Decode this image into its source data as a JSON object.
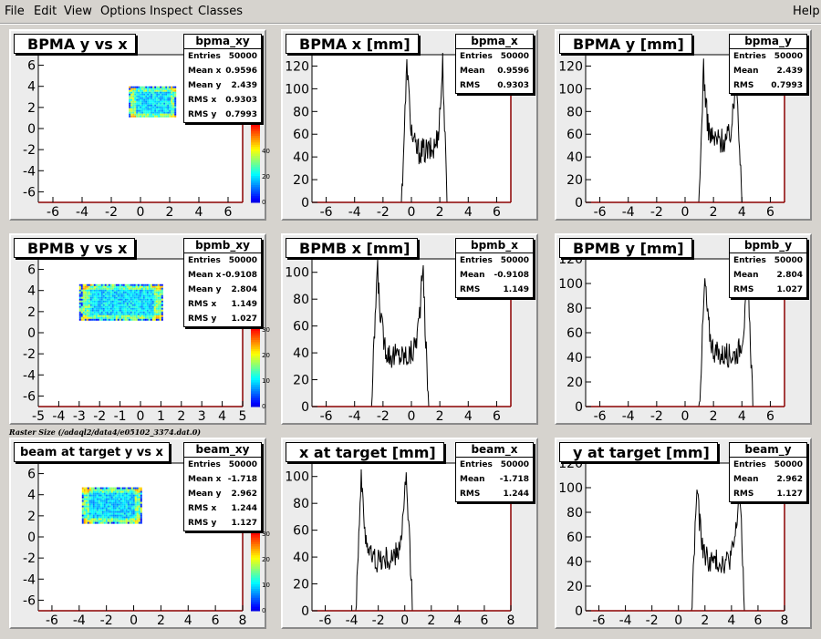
{
  "menu": {
    "file": "File",
    "edit": "Edit",
    "view": "View",
    "options": "Options",
    "inspect": "Inspect",
    "classes": "Classes",
    "help": "Help"
  },
  "caption": "Raster Size (/adaql2/data4/e05102_3374.dat.0)",
  "colors": {
    "pad_bg": "#ececec",
    "frame": "#8b0000",
    "line": "#000000"
  },
  "chart_data": [
    {
      "id": "bpma_xy",
      "type": "heatmap",
      "title": "BPMA y vs x",
      "xlim": [
        -7,
        7
      ],
      "ylim": [
        -7,
        7
      ],
      "xticks": [
        -6,
        -4,
        -2,
        0,
        2,
        4,
        6
      ],
      "yticks": [
        -6,
        -4,
        -2,
        0,
        2,
        4,
        6
      ],
      "region": {
        "x": [
          -0.8,
          2.4
        ],
        "y": [
          1.1,
          4.0
        ]
      },
      "colorbar_labels": [
        "0",
        "20",
        "40"
      ],
      "stats": {
        "name": "bpma_xy",
        "rows": [
          [
            "Entries",
            "50000"
          ],
          [
            "Mean x",
            "0.9596"
          ],
          [
            "Mean y",
            "2.439"
          ],
          [
            "RMS x",
            "0.9303"
          ],
          [
            "RMS y",
            "0.7993"
          ]
        ]
      }
    },
    {
      "id": "bpma_x",
      "type": "line",
      "title": "BPMA x [mm]",
      "xlim": [
        -7,
        7
      ],
      "ylim": [
        0,
        130
      ],
      "xticks": [
        -6,
        -4,
        -2,
        0,
        2,
        4,
        6
      ],
      "yticks": [
        0,
        20,
        40,
        60,
        80,
        100,
        120
      ],
      "shape": {
        "left": -0.7,
        "right": 2.5,
        "edge_left": -0.3,
        "edge_right": 2.2,
        "peak": 125,
        "valley": 45,
        "noise": 12
      },
      "stats": {
        "name": "bpma_x",
        "rows": [
          [
            "Entries",
            "50000"
          ],
          [
            "Mean",
            "0.9596"
          ],
          [
            "RMS",
            "0.9303"
          ]
        ]
      }
    },
    {
      "id": "bpma_y",
      "type": "line",
      "title": "BPMA y [mm]",
      "xlim": [
        -7,
        7
      ],
      "ylim": [
        0,
        130
      ],
      "xticks": [
        -6,
        -4,
        -2,
        0,
        2,
        4,
        6
      ],
      "yticks": [
        0,
        20,
        40,
        60,
        80,
        100,
        120
      ],
      "shape": {
        "left": 1.0,
        "right": 4.0,
        "edge_left": 1.3,
        "edge_right": 3.6,
        "peak": 122,
        "valley": 55,
        "noise": 12
      },
      "stats": {
        "name": "bpma_y",
        "rows": [
          [
            "Entries",
            "50000"
          ],
          [
            "Mean",
            "2.439"
          ],
          [
            "RMS",
            "0.7993"
          ]
        ]
      }
    },
    {
      "id": "bpmb_xy",
      "type": "heatmap",
      "title": "BPMB y vs x",
      "xlim": [
        -5,
        5
      ],
      "ylim": [
        -7,
        7
      ],
      "xticks": [
        -5,
        -4,
        -3,
        -2,
        -1,
        0,
        1,
        2,
        3,
        4,
        5
      ],
      "yticks": [
        -6,
        -4,
        -2,
        0,
        2,
        4,
        6
      ],
      "region": {
        "x": [
          -3.0,
          1.1
        ],
        "y": [
          1.3,
          4.6
        ]
      },
      "colorbar_labels": [
        "0",
        "10",
        "20",
        "30"
      ],
      "stats": {
        "name": "bpmb_xy",
        "rows": [
          [
            "Entries",
            "50000"
          ],
          [
            "Mean x",
            "-0.9108"
          ],
          [
            "Mean y",
            "2.804"
          ],
          [
            "RMS x",
            "1.149"
          ],
          [
            "RMS y",
            "1.027"
          ]
        ]
      }
    },
    {
      "id": "bpmb_x",
      "type": "line",
      "title": "BPMB x [mm]",
      "xlim": [
        -7,
        7
      ],
      "ylim": [
        0,
        110
      ],
      "xticks": [
        -6,
        -4,
        -2,
        0,
        2,
        4,
        6
      ],
      "yticks": [
        0,
        20,
        40,
        60,
        80,
        100
      ],
      "shape": {
        "left": -2.8,
        "right": 1.2,
        "edge_left": -2.4,
        "edge_right": 0.8,
        "peak": 105,
        "valley": 38,
        "noise": 10
      },
      "stats": {
        "name": "bpmb_x",
        "rows": [
          [
            "Entries",
            "50000"
          ],
          [
            "Mean",
            "-0.9108"
          ],
          [
            "RMS",
            "1.149"
          ]
        ]
      }
    },
    {
      "id": "bpmb_y",
      "type": "line",
      "title": "BPMB y [mm]",
      "xlim": [
        -7,
        7
      ],
      "ylim": [
        0,
        120
      ],
      "xticks": [
        -6,
        -4,
        -2,
        0,
        2,
        4,
        6
      ],
      "yticks": [
        0,
        20,
        40,
        60,
        80,
        100,
        120
      ],
      "shape": {
        "left": 1.0,
        "right": 4.8,
        "edge_left": 1.4,
        "edge_right": 4.4,
        "peak": 104,
        "valley": 42,
        "noise": 10
      },
      "stats": {
        "name": "bpmb_y",
        "rows": [
          [
            "Entries",
            "50000"
          ],
          [
            "Mean",
            "2.804"
          ],
          [
            "RMS",
            "1.027"
          ]
        ]
      }
    },
    {
      "id": "beam_xy",
      "type": "heatmap",
      "title": "beam at target y vs x",
      "xlim": [
        -7,
        8
      ],
      "ylim": [
        -7,
        7
      ],
      "xticks": [
        -6,
        -4,
        -2,
        0,
        2,
        4,
        6,
        8
      ],
      "yticks": [
        -6,
        -4,
        -2,
        0,
        2,
        4,
        6
      ],
      "region": {
        "x": [
          -3.8,
          0.6
        ],
        "y": [
          1.4,
          4.7
        ]
      },
      "colorbar_labels": [
        "0",
        "10",
        "20",
        "30"
      ],
      "stats": {
        "name": "beam_xy",
        "rows": [
          [
            "Entries",
            "50000"
          ],
          [
            "Mean x",
            "-1.718"
          ],
          [
            "Mean y",
            "2.962"
          ],
          [
            "RMS x",
            "1.244"
          ],
          [
            "RMS y",
            "1.127"
          ]
        ]
      }
    },
    {
      "id": "beam_x",
      "type": "line",
      "title": "x at target [mm]",
      "xlim": [
        -7,
        8
      ],
      "ylim": [
        0,
        110
      ],
      "xticks": [
        -6,
        -4,
        -2,
        0,
        2,
        4,
        6,
        8
      ],
      "yticks": [
        0,
        20,
        40,
        60,
        80,
        100
      ],
      "shape": {
        "left": -3.7,
        "right": 0.6,
        "edge_left": -3.3,
        "edge_right": 0.1,
        "peak": 100,
        "valley": 38,
        "noise": 10
      },
      "stats": {
        "name": "beam_x",
        "rows": [
          [
            "Entries",
            "50000"
          ],
          [
            "Mean",
            "-1.718"
          ],
          [
            "RMS",
            "1.244"
          ]
        ]
      }
    },
    {
      "id": "beam_y",
      "type": "line",
      "title": "y at target [mm]",
      "xlim": [
        -7,
        8
      ],
      "ylim": [
        0,
        120
      ],
      "xticks": [
        -6,
        -4,
        -2,
        0,
        2,
        4,
        6,
        8
      ],
      "yticks": [
        0,
        20,
        40,
        60,
        80,
        100,
        120
      ],
      "shape": {
        "left": 1.0,
        "right": 5.0,
        "edge_left": 1.4,
        "edge_right": 4.6,
        "peak": 102,
        "valley": 40,
        "noise": 10
      },
      "stats": {
        "name": "beam_y",
        "rows": [
          [
            "Entries",
            "50000"
          ],
          [
            "Mean",
            "2.962"
          ],
          [
            "RMS",
            "1.127"
          ]
        ]
      }
    }
  ]
}
